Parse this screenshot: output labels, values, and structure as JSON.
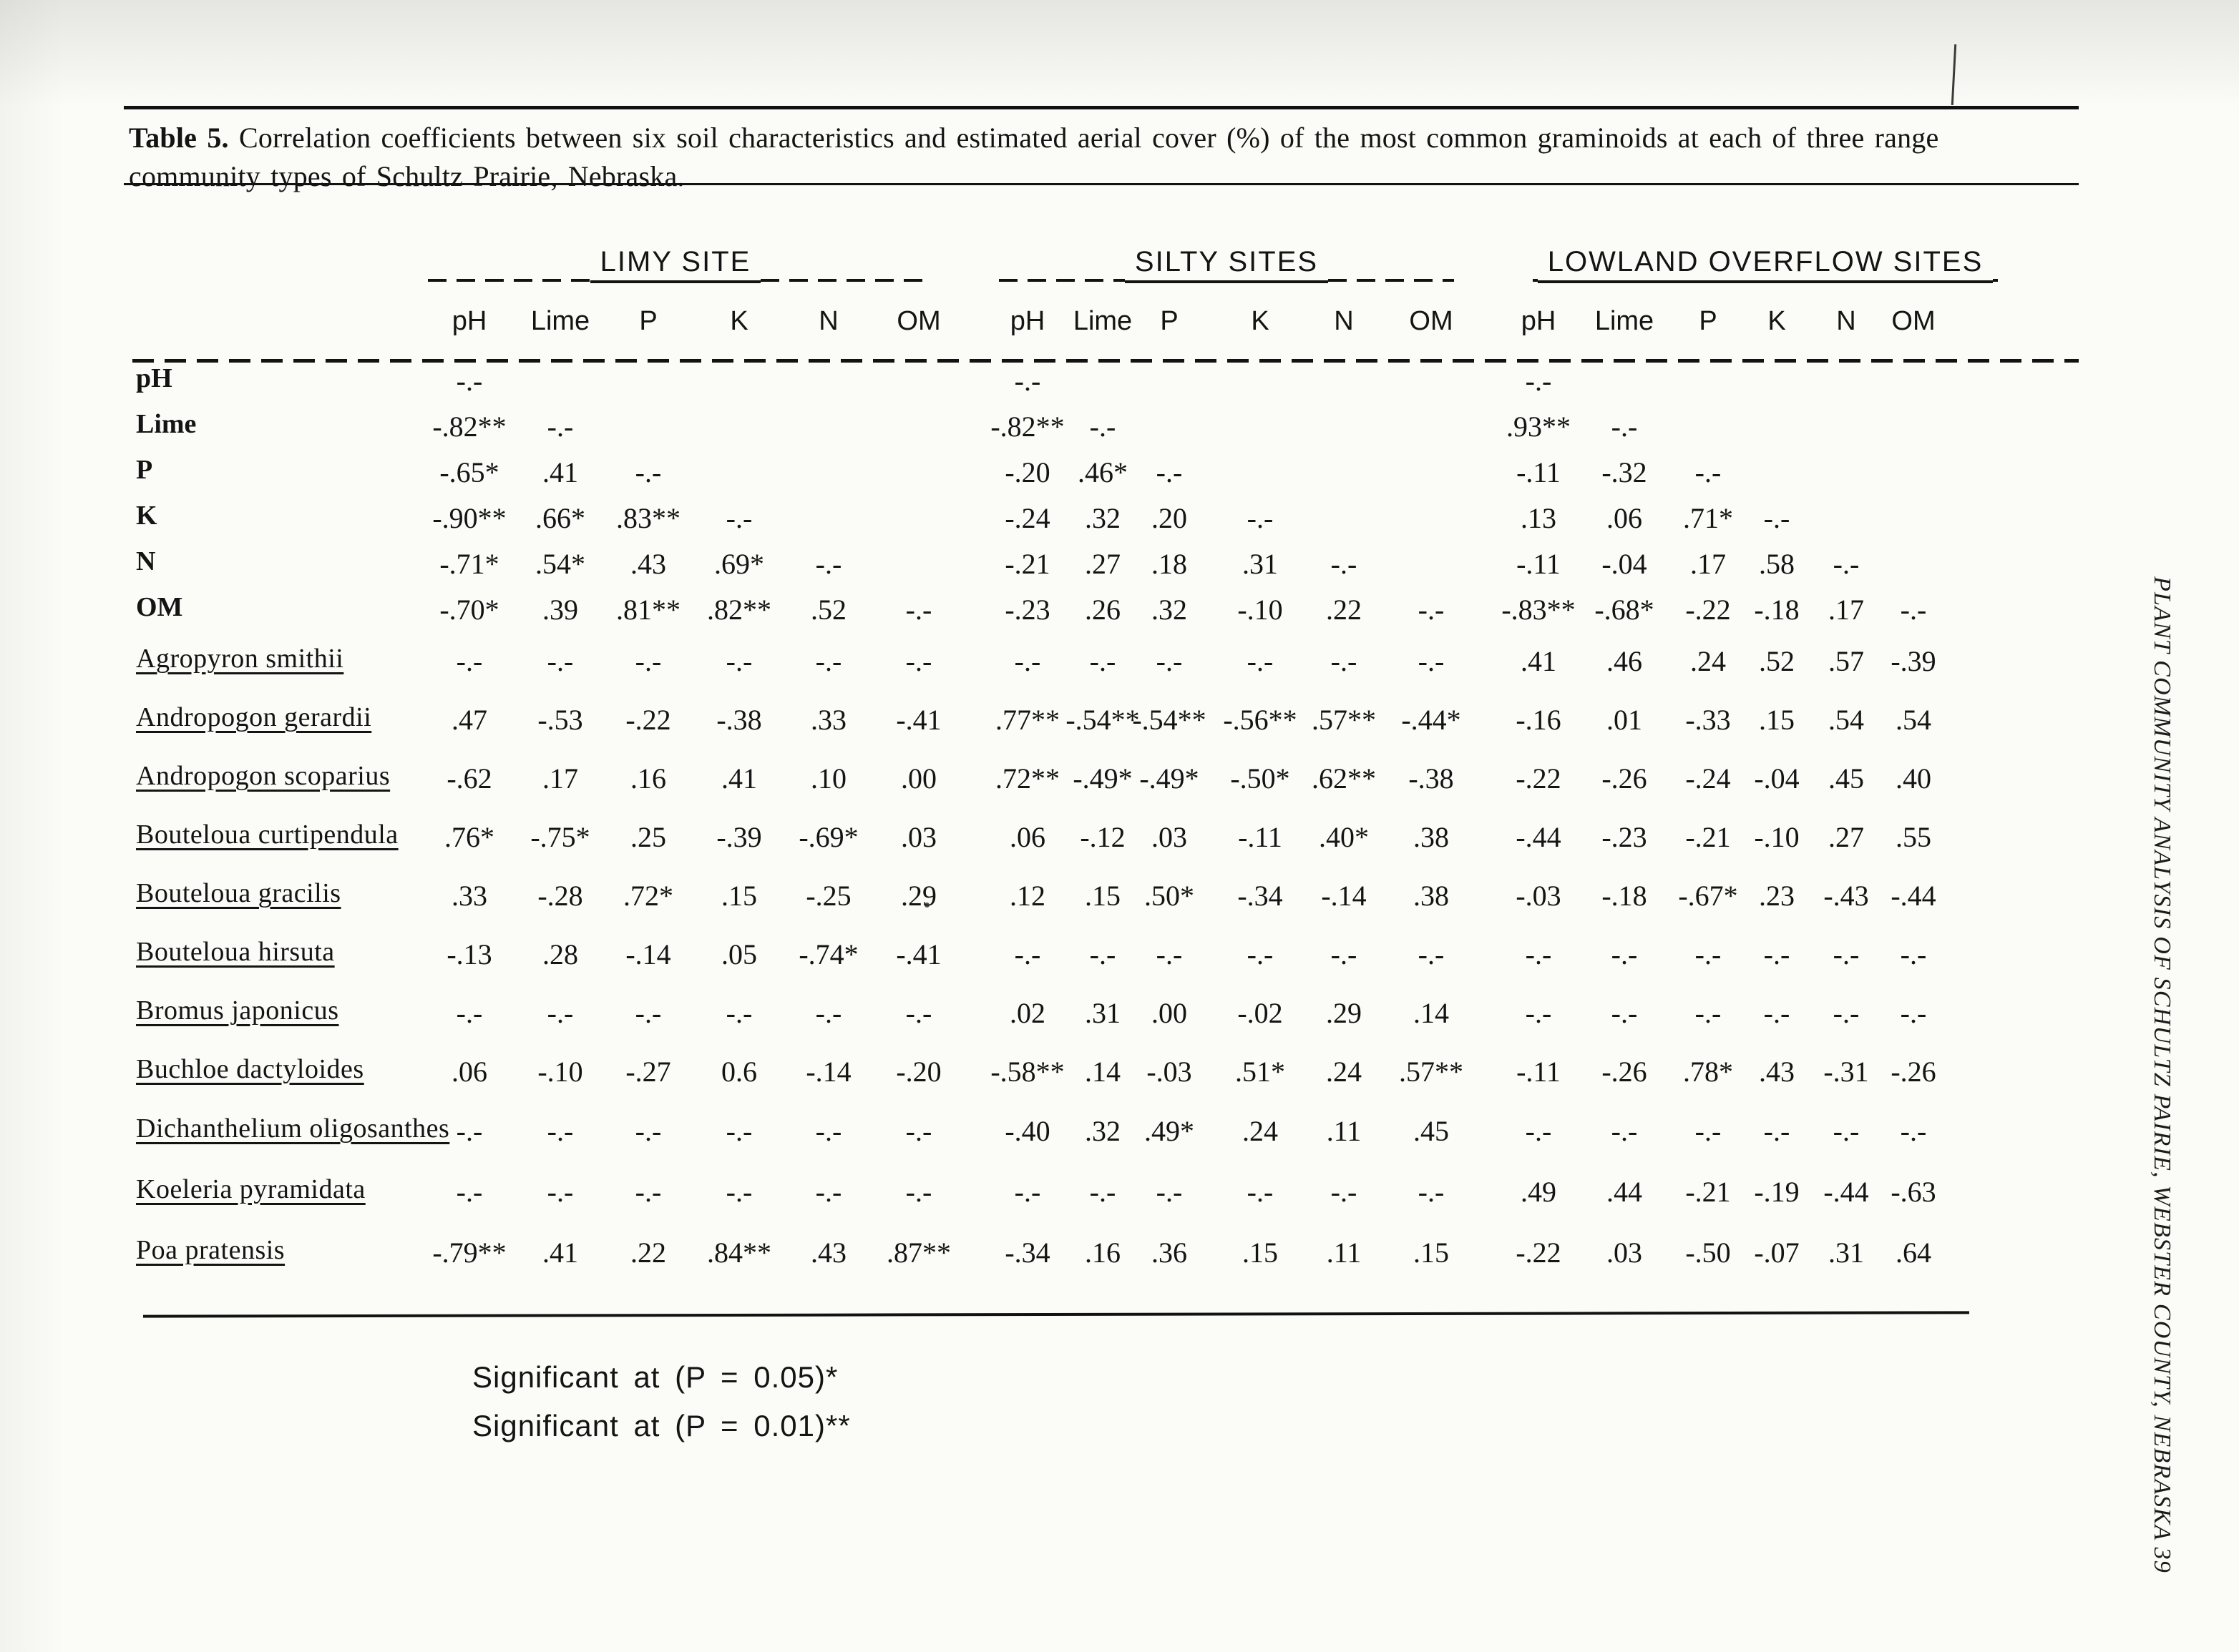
{
  "title": {
    "label": "Table 5.",
    "text": "Correlation coefficients between six soil characteristics and estimated aerial cover (%) of the most common graminoids at each of three range community types of Schultz Prairie, Nebraska."
  },
  "groups": [
    {
      "name": "LIMY SITE"
    },
    {
      "name": "SILTY SITES"
    },
    {
      "name": "LOWLAND OVERFLOW SITES"
    }
  ],
  "columns": [
    "pH",
    "Lime",
    "P",
    "K",
    "N",
    "OM"
  ],
  "rows": [
    {
      "label": "pH",
      "type": "soil",
      "values": [
        [
          "-.-"
        ],
        [
          "-.-"
        ],
        [
          "-.-"
        ]
      ]
    },
    {
      "label": "Lime",
      "type": "soil",
      "values": [
        [
          "-.82**",
          "-.-"
        ],
        [
          "-.82**",
          "-.-"
        ],
        [
          ".93**",
          "-.-"
        ]
      ]
    },
    {
      "label": "P",
      "type": "soil",
      "values": [
        [
          "-.65*",
          ".41",
          "-.-"
        ],
        [
          "-.20",
          ".46*",
          "-.-"
        ],
        [
          "-.11",
          "-.32",
          "-.-"
        ]
      ]
    },
    {
      "label": "K",
      "type": "soil",
      "values": [
        [
          "-.90**",
          ".66*",
          ".83**",
          "-.-"
        ],
        [
          "-.24",
          ".32",
          ".20",
          "-.-"
        ],
        [
          ".13",
          ".06",
          ".71*",
          "-.-"
        ]
      ]
    },
    {
      "label": "N",
      "type": "soil",
      "values": [
        [
          "-.71*",
          ".54*",
          ".43",
          ".69*",
          "-.-"
        ],
        [
          "-.21",
          ".27",
          ".18",
          ".31",
          "-.-"
        ],
        [
          "-.11",
          "-.04",
          ".17",
          ".58",
          "-.-"
        ]
      ]
    },
    {
      "label": "OM",
      "type": "soil",
      "values": [
        [
          "-.70*",
          ".39",
          ".81**",
          ".82**",
          ".52",
          "-.-"
        ],
        [
          "-.23",
          ".26",
          ".32",
          "-.10",
          ".22",
          "-.-"
        ],
        [
          "-.83**",
          "-.68*",
          "-.22",
          "-.18",
          ".17",
          "-.-"
        ]
      ]
    },
    {
      "label": "Agropyron smithii",
      "type": "species",
      "values": [
        [
          "-.-",
          "-.-",
          "-.-",
          "-.-",
          "-.-",
          "-.-"
        ],
        [
          "-.-",
          "-.-",
          "-.-",
          "-.-",
          "-.-",
          "-.-"
        ],
        [
          ".41",
          ".46",
          ".24",
          ".52",
          ".57",
          "-.39"
        ]
      ]
    },
    {
      "label": "Andropogon gerardii",
      "type": "species",
      "values": [
        [
          ".47",
          "-.53",
          "-.22",
          "-.38",
          ".33",
          "-.41"
        ],
        [
          ".77**",
          "-.54**",
          "-.54**",
          "-.56**",
          ".57**",
          "-.44*"
        ],
        [
          "-.16",
          ".01",
          "-.33",
          ".15",
          ".54",
          ".54"
        ]
      ]
    },
    {
      "label": "Andropogon scoparius",
      "type": "species",
      "values": [
        [
          "-.62",
          ".17",
          ".16",
          ".41",
          ".10",
          ".00"
        ],
        [
          ".72**",
          "-.49*",
          "-.49*",
          "-.50*",
          ".62**",
          "-.38"
        ],
        [
          "-.22",
          "-.26",
          "-.24",
          "-.04",
          ".45",
          ".40"
        ]
      ]
    },
    {
      "label": "Bouteloua curtipendula",
      "type": "species",
      "values": [
        [
          ".76*",
          "-.75*",
          ".25",
          "-.39",
          "-.69*",
          ".03"
        ],
        [
          ".06",
          "-.12",
          ".03",
          "-.11",
          ".40*",
          ".38"
        ],
        [
          "-.44",
          "-.23",
          "-.21",
          "-.10",
          ".27",
          ".55"
        ]
      ]
    },
    {
      "label": "Bouteloua gracilis",
      "type": "species",
      "values": [
        [
          ".33",
          "-.28",
          ".72*",
          ".15",
          "-.25",
          ".29"
        ],
        [
          ".12",
          ".15",
          ".50*",
          "-.34",
          "-.14",
          ".38"
        ],
        [
          "-.03",
          "-.18",
          "-.67*",
          ".23",
          "-.43",
          "-.44"
        ]
      ]
    },
    {
      "label": "Bouteloua hirsuta",
      "type": "species",
      "values": [
        [
          "-.13",
          ".28",
          "-.14",
          ".05",
          "-.74*",
          "-.41"
        ],
        [
          "-.-",
          "-.-",
          "-.-",
          "-.-",
          "-.-",
          "-.-"
        ],
        [
          "-.-",
          "-.-",
          "-.-",
          "-.-",
          "-.-",
          "-.-"
        ]
      ]
    },
    {
      "label": "Bromus japonicus",
      "type": "species",
      "values": [
        [
          "-.-",
          "-.-",
          "-.-",
          "-.-",
          "-.-",
          "-.-"
        ],
        [
          ".02",
          ".31",
          ".00",
          "-.02",
          ".29",
          ".14"
        ],
        [
          "-.-",
          "-.-",
          "-.-",
          "-.-",
          "-.-",
          "-.-"
        ]
      ]
    },
    {
      "label": "Buchloe dactyloides",
      "type": "species",
      "values": [
        [
          ".06",
          "-.10",
          "-.27",
          "0.6",
          "-.14",
          "-.20"
        ],
        [
          "-.58**",
          ".14",
          "-.03",
          ".51*",
          ".24",
          ".57**"
        ],
        [
          "-.11",
          "-.26",
          ".78*",
          ".43",
          "-.31",
          "-.26"
        ]
      ]
    },
    {
      "label": "Dichanthelium oligosanthes",
      "type": "species",
      "values": [
        [
          "-.-",
          "-.-",
          "-.-",
          "-.-",
          "-.-",
          "-.-"
        ],
        [
          "-.40",
          ".32",
          ".49*",
          ".24",
          ".11",
          ".45"
        ],
        [
          "-.-",
          "-.-",
          "-.-",
          "-.-",
          "-.-",
          "-.-"
        ]
      ]
    },
    {
      "label": "Koeleria pyramidata",
      "type": "species",
      "values": [
        [
          "-.-",
          "-.-",
          "-.-",
          "-.-",
          "-.-",
          "-.-"
        ],
        [
          "-.-",
          "-.-",
          "-.-",
          "-.-",
          "-.-",
          "-.-"
        ],
        [
          ".49",
          ".44",
          "-.21",
          "-.19",
          "-.44",
          "-.63"
        ]
      ]
    },
    {
      "label": "Poa pratensis",
      "type": "species",
      "values": [
        [
          "-.79**",
          ".41",
          ".22",
          ".84**",
          ".43",
          ".87**"
        ],
        [
          "-.34",
          ".16",
          ".36",
          ".15",
          ".11",
          ".15"
        ],
        [
          "-.22",
          ".03",
          "-.50",
          "-.07",
          ".31",
          ".64"
        ]
      ]
    }
  ],
  "footnotes": [
    "Significant at (P = 0.05)*",
    "Significant at (P = 0.01)**"
  ],
  "sidebar_text": "PLANT COMMUNITY ANALYSIS OF SCHULTZ PAIRIE, WEBSTER COUNTY, NEBRASKA 39"
}
